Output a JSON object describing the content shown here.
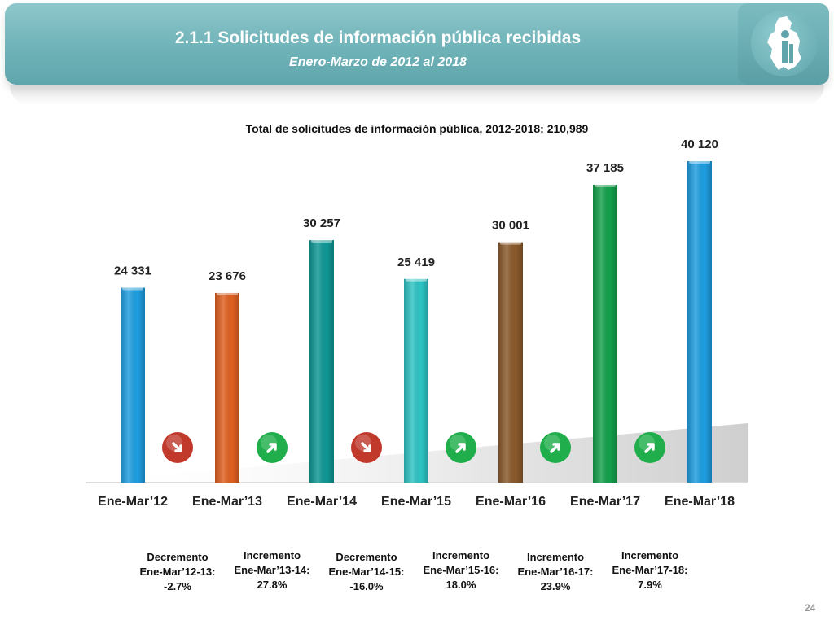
{
  "header": {
    "title": "2.1.1 Solicitudes de información pública recibidas",
    "subtitle": "Enero-Marzo de 2012 al 2018"
  },
  "page_number": "24",
  "chart_data": {
    "type": "bar",
    "title": "Total de solicitudes de información pública, 2012-2018: 210,989",
    "categories": [
      "Ene-Mar’12",
      "Ene-Mar’13",
      "Ene-Mar’14",
      "Ene-Mar’15",
      "Ene-Mar’16",
      "Ene-Mar’17",
      "Ene-Mar’18"
    ],
    "values": [
      24331,
      23676,
      30257,
      25419,
      30001,
      37185,
      40120
    ],
    "value_labels": [
      "24 331",
      "23 676",
      "30 257",
      "25 419",
      "30 001",
      "37 185",
      "40 120"
    ],
    "bar_colors": [
      "#1e9ee0",
      "#e06020",
      "#0f9896",
      "#2ec3c3",
      "#8b5a2b",
      "#13a04a",
      "#1e9ee0"
    ],
    "ylim": [
      0,
      45000
    ],
    "grid": false,
    "legend": "none",
    "changes": [
      {
        "label": "Decremento",
        "period": "Ene-Mar’12-13:",
        "value": "-2.7%",
        "direction": "down"
      },
      {
        "label": "Incremento",
        "period": "Ene-Mar’13-14:",
        "value": "27.8%",
        "direction": "up"
      },
      {
        "label": "Decremento",
        "period": "Ene-Mar’14-15:",
        "value": "-16.0%",
        "direction": "down"
      },
      {
        "label": "Incremento",
        "period": "Ene-Mar’15-16:",
        "value": "18.0%",
        "direction": "up"
      },
      {
        "label": "Incremento",
        "period": "Ene-Mar’16-17:",
        "value": "23.9%",
        "direction": "up"
      },
      {
        "label": "Incremento",
        "period": "Ene-Mar’17-18:",
        "value": "7.9%",
        "direction": "up"
      }
    ],
    "change_colors": {
      "down": "#c0392b",
      "up": "#1fae4b"
    }
  }
}
